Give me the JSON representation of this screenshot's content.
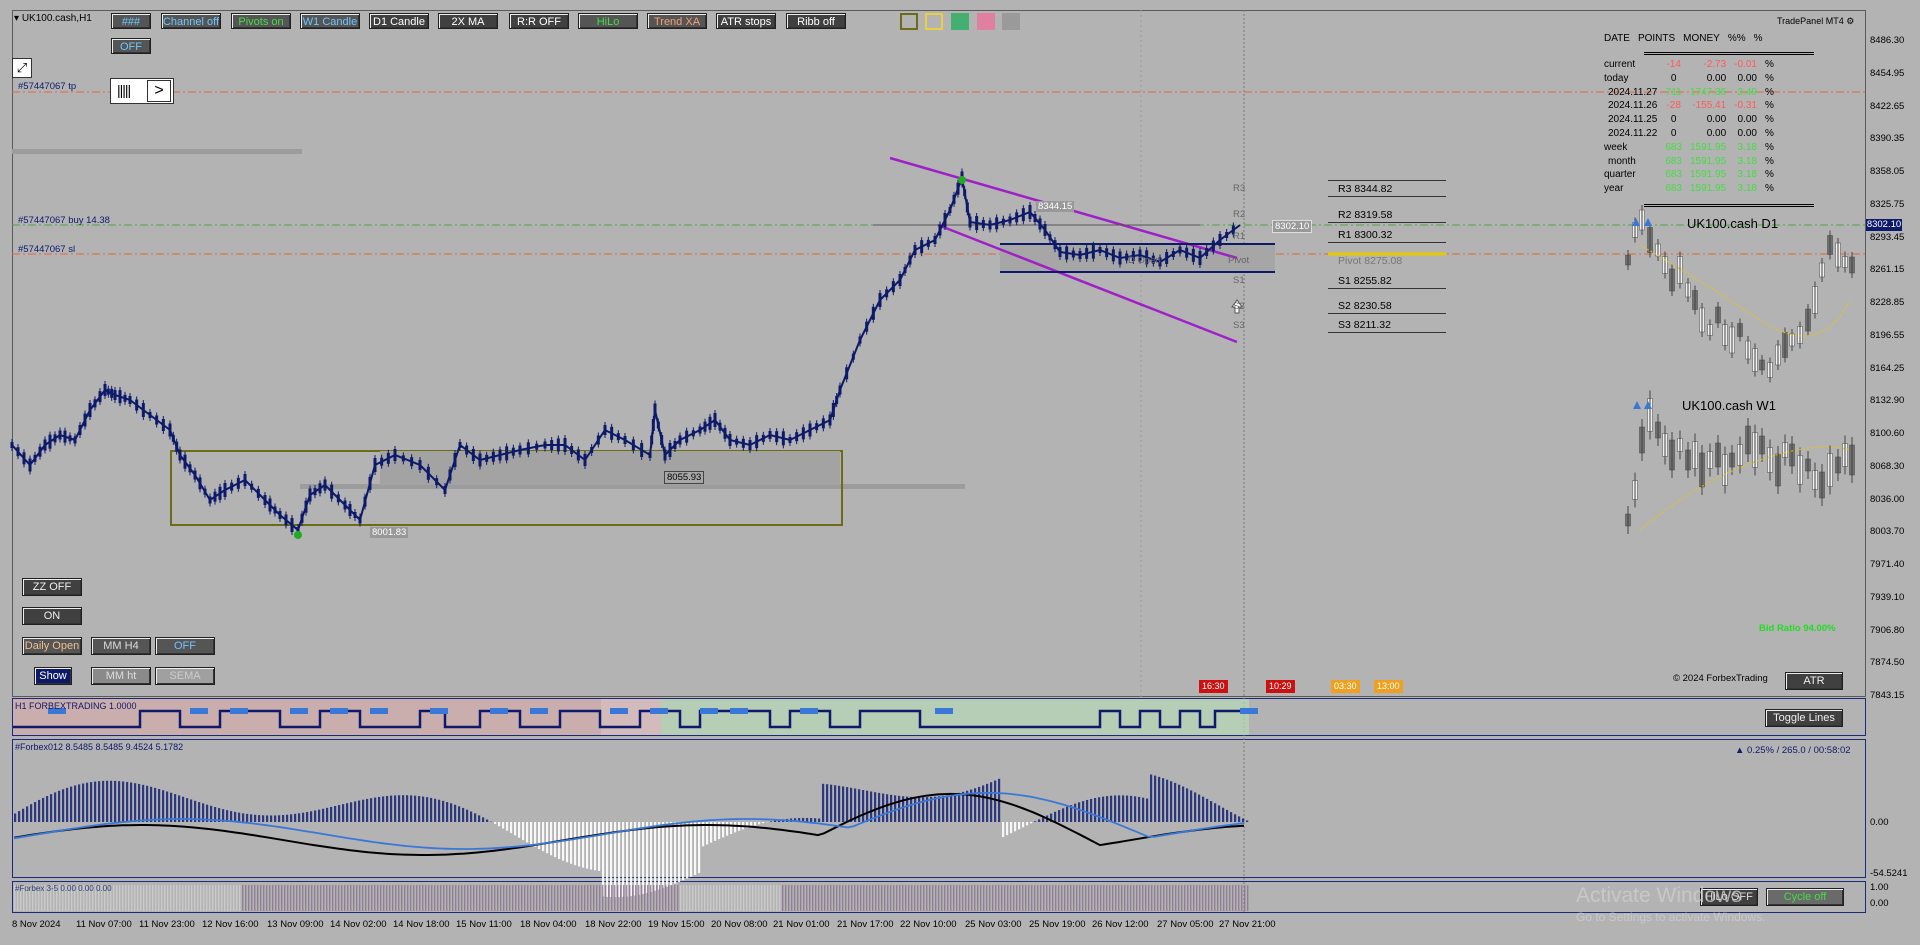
{
  "symbol_title": "UK100.cash,H1",
  "toolbar": {
    "row1": [
      {
        "label": "###",
        "color": "#6ec6ff"
      },
      {
        "label": "Channel off",
        "color": "#6ec6ff"
      },
      {
        "label": "Pivots on",
        "color": "#44dd44"
      },
      {
        "label": "W1 Candle",
        "color": "#6ec6ff"
      },
      {
        "label": "D1 Candle",
        "color": "#ffffff"
      },
      {
        "label": "2X MA",
        "color": "#ffffff"
      },
      {
        "label": "R:R OFF",
        "color": "#ffffff"
      },
      {
        "label": "HiLo",
        "color": "#44dd44"
      },
      {
        "label": "Trend XA",
        "color": "#f0a070"
      },
      {
        "label": "ATR stops",
        "color": "#ffffff"
      },
      {
        "label": "Ribb off",
        "color": "#ffffff"
      }
    ],
    "off_label": "OFF",
    "swatches": [
      "#9a9a44",
      "#e8d040",
      "#44b070",
      "#e080a0",
      "#9a9a9a"
    ]
  },
  "left_panel": {
    "zz_off": "ZZ OFF",
    "on": "ON",
    "daily_open": "Daily Open",
    "mm_h4": "MM H4",
    "off": "OFF",
    "show": "Show",
    "mm_ht": "MM ht",
    "sema": "SEMA"
  },
  "order_lines": {
    "tp": "#57447067 tp",
    "buy": "#57447067 buy 14.38",
    "sl": "#57447067 sl"
  },
  "chart_labels": {
    "low1": "8001.83",
    "low2": "8055.93",
    "high_box": "8344.15",
    "d_open": "D Open",
    "pivot_small": "Pivot",
    "cur_price_tag": "8302.10",
    "r3": "R3",
    "r2": "R2",
    "r1": "R1",
    "s1": "S1",
    "s2": "S2",
    "s3": "S3"
  },
  "pivots": [
    {
      "label": "R3 8344.82"
    },
    {
      "label": "R2 8319.58"
    },
    {
      "label": "R1 8300.32"
    },
    {
      "label": "Pivot 8275.08"
    },
    {
      "label": "S1 8255.82"
    },
    {
      "label": "S2 8230.58"
    },
    {
      "label": "S3 8211.32"
    }
  ],
  "trade_panel": {
    "title": "TradePanel MT4",
    "headers": [
      "DATE",
      "POINTS",
      "MONEY",
      "%%",
      "%"
    ],
    "rows": [
      {
        "date": "current",
        "points": "-14",
        "money": "-2.73",
        "pct": "-0.01",
        "pct_color": "#ff5a5a",
        "money_color": "#ff5a5a"
      },
      {
        "date": "today",
        "points": "0",
        "money": "0.00",
        "pct": "0.00",
        "pct_color": "#000",
        "money_color": "#000"
      },
      {
        "date": "2024.11.27",
        "points": "711",
        "money": "1747.36",
        "pct": "3.49",
        "pct_color": "#44dd44",
        "money_color": "#44dd44"
      },
      {
        "date": "2024.11.26",
        "points": "-28",
        "money": "-155.41",
        "pct": "-0.31",
        "pct_color": "#ff5a5a",
        "money_color": "#ff5a5a"
      },
      {
        "date": "2024.11.25",
        "points": "0",
        "money": "0.00",
        "pct": "0.00",
        "pct_color": "#000",
        "money_color": "#000"
      },
      {
        "date": "2024.11.22",
        "points": "0",
        "money": "0.00",
        "pct": "0.00",
        "pct_color": "#000",
        "money_color": "#000"
      },
      {
        "date": "week",
        "points": "683",
        "money": "1591.95",
        "pct": "3.18",
        "pct_color": "#44dd44",
        "money_color": "#44dd44"
      },
      {
        "date": "month",
        "points": "683",
        "money": "1591.95",
        "pct": "3.18",
        "pct_color": "#44dd44",
        "money_color": "#44dd44"
      },
      {
        "date": "quarter",
        "points": "683",
        "money": "1591.95",
        "pct": "3.18",
        "pct_color": "#44dd44",
        "money_color": "#44dd44"
      },
      {
        "date": "year",
        "points": "683",
        "money": "1591.95",
        "pct": "3.18",
        "pct_color": "#44dd44",
        "money_color": "#44dd44"
      }
    ],
    "pct_sign": "%"
  },
  "mini_charts": {
    "d1_title": "UK100.cash D1",
    "w1_title": "UK100.cash W1"
  },
  "bid_ratio": "Bid Ratio 94.00%",
  "copyright": "© 2024 ForbexTrading",
  "atr_button": "ATR",
  "toggle_lines": "Toggle Lines",
  "session_tags": [
    "16:30",
    "10:29",
    "03:30",
    "13:00"
  ],
  "indicators": {
    "ind1_label": "H1 FORBEXTRADING 1.0000",
    "ind2_label": "#Forbex012 8.5485 8.5485 9.4524 5.1782",
    "ind2_right": "▲ 0.25% / 265.0 / 00:58:02",
    "ind3_label": "#Forbex 3-5 0.00 0.00 0.00",
    "hilo_off": "HiLo OFF",
    "cycle_off": "Cycle off"
  },
  "watermark": {
    "line1": "Activate Windows",
    "line2": "Go to Settings to activate Windows."
  },
  "price_axis": [
    "8486.30",
    "8454.95",
    "8422.65",
    "8390.35",
    "8358.05",
    "8325.75",
    "8293.45",
    "8261.15",
    "8228.85",
    "8196.55",
    "8164.25",
    "8132.90",
    "8100.60",
    "8068.30",
    "8036.00",
    "8003.70",
    "7971.40",
    "7939.10",
    "7906.80",
    "7874.50",
    "7843.15"
  ],
  "current_price_tag": "8302.10",
  "ind2_axis": [
    "0.00",
    "-54.5241"
  ],
  "ind3_axis": [
    "1.00",
    "0.00"
  ],
  "ind2_axis_top": "",
  "time_axis": [
    "8 Nov 2024",
    "11 Nov 07:00",
    "11 Nov 23:00",
    "12 Nov 16:00",
    "13 Nov 09:00",
    "14 Nov 02:00",
    "14 Nov 18:00",
    "15 Nov 11:00",
    "18 Nov 04:00",
    "18 Nov 22:00",
    "19 Nov 15:00",
    "20 Nov 08:00",
    "21 Nov 01:00",
    "21 Nov 17:00",
    "22 Nov 10:00",
    "25 Nov 03:00",
    "25 Nov 19:00",
    "26 Nov 12:00",
    "27 Nov 05:00",
    "27 Nov 21:00"
  ]
}
